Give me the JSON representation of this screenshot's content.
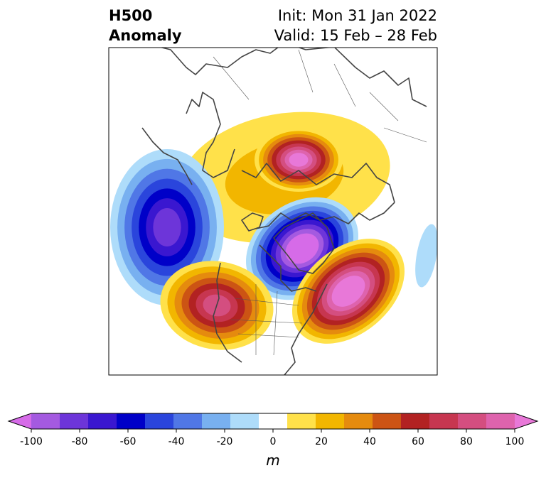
{
  "title": {
    "variable_line1": "H500",
    "variable_line2": "Anomaly",
    "init_line": "Init: Mon 31 Jan 2022",
    "valid_line": "Valid: 15 Feb – 28 Feb"
  },
  "colorbar": {
    "unit": "m",
    "ticks": [
      "-100",
      "-80",
      "-60",
      "-40",
      "-20",
      "0",
      "20",
      "40",
      "60",
      "80",
      "100"
    ],
    "levels": [
      -100,
      -90,
      -80,
      -70,
      -60,
      -50,
      -40,
      -30,
      -20,
      -10,
      10,
      20,
      30,
      40,
      50,
      60,
      70,
      80,
      90,
      100
    ],
    "colors": [
      "#d66be8",
      "#a45ae0",
      "#6d35d9",
      "#3a17d0",
      "#0000c8",
      "#2a45dc",
      "#5077e6",
      "#78b0f0",
      "#aedcfa",
      "#ffffff",
      "#ffe14a",
      "#f2b600",
      "#e58b0e",
      "#cc5414",
      "#b22222",
      "#c73650",
      "#d44e80",
      "#de63ad",
      "#e878d8"
    ],
    "extend": "both"
  },
  "map": {
    "projection": "north-polar-stereographic",
    "anomaly_centers": [
      {
        "region": "Arctic / northern Siberia",
        "sign": "positive",
        "max_value": 100
      },
      {
        "region": "Hudson Bay / northern Canada",
        "sign": "negative",
        "min_value": -100
      },
      {
        "region": "North Atlantic",
        "sign": "positive",
        "max_value": 100
      },
      {
        "region": "Western US",
        "sign": "positive",
        "max_value": 70
      },
      {
        "region": "North Pacific",
        "sign": "negative",
        "min_value": -80
      }
    ]
  }
}
